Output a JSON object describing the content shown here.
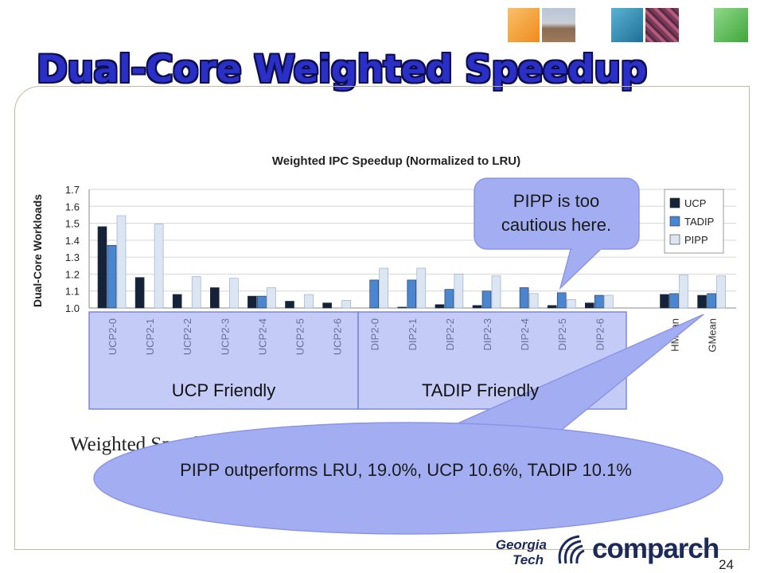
{
  "slide": {
    "title": "Dual-Core Weighted Speedup",
    "page_number": "24",
    "buried_text": "Weighted Speedup = Σ IPC[i]",
    "group_labels": {
      "ucp": "UCP Friendly",
      "tadip": "TADIP Friendly"
    },
    "callout_top": "PIPP is too cautious here.",
    "callout_bottom": "PIPP outperforms LRU, 19.0%, UCP 10.6%, TADIP 10.1%",
    "logos": {
      "gt": "Georgia Tech",
      "comparch": "comparch"
    }
  },
  "colors": {
    "title": "#2a2fc7",
    "ucp": "#142338",
    "tadip": "#4a86d0",
    "pipp": "#dce6f2",
    "callout_fill": "#9fa9f0",
    "tile_orange": "#f5a23b",
    "tile_blue": "#2d8ab0",
    "tile_green": "#5dbf56"
  },
  "chart_data": {
    "type": "bar",
    "title": "Weighted IPC Speedup (Normalized to LRU)",
    "ylabel": "Dual-Core Workloads",
    "ylim": [
      1.0,
      1.7
    ],
    "yticks": [
      "1.0",
      "1.1",
      "1.2",
      "1.3",
      "1.4",
      "1.5",
      "1.6",
      "1.7"
    ],
    "legend_position": "top-right",
    "grid": true,
    "categories": [
      "UCP2-0",
      "UCP2-1",
      "UCP2-2",
      "UCP2-3",
      "UCP2-4",
      "UCP2-5",
      "UCP2-6",
      "DIP2-0",
      "DIP2-1",
      "DIP2-2",
      "DIP2-3",
      "DIP2-4",
      "DIP2-5",
      "DIP2-6",
      "",
      "HMean",
      "GMean"
    ],
    "series": [
      {
        "name": "UCP",
        "values": [
          1.48,
          1.18,
          1.08,
          1.12,
          1.07,
          1.04,
          1.03,
          1.0,
          1.005,
          1.02,
          1.015,
          1.0,
          1.015,
          1.03,
          null,
          1.08,
          1.075
        ]
      },
      {
        "name": "TADIP",
        "values": [
          1.37,
          1.0,
          1.0,
          1.0,
          1.07,
          1.0,
          1.0,
          1.165,
          1.165,
          1.11,
          1.1,
          1.12,
          1.09,
          1.075,
          null,
          1.085,
          1.085
        ]
      },
      {
        "name": "PIPP",
        "values": [
          1.545,
          1.495,
          1.185,
          1.175,
          1.12,
          1.08,
          1.045,
          1.235,
          1.235,
          1.2,
          1.19,
          1.085,
          1.05,
          1.075,
          null,
          1.195,
          1.19
        ]
      }
    ]
  }
}
